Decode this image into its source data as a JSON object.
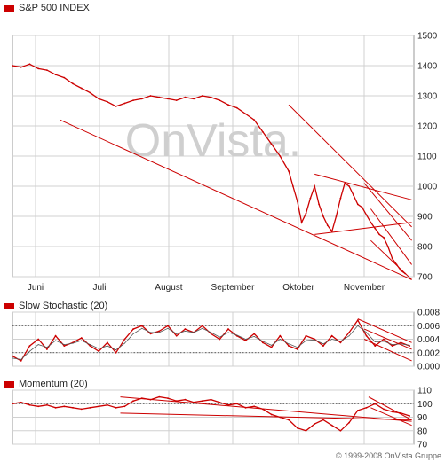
{
  "colors": {
    "accent": "#cc0000",
    "grid": "#d0d0d0",
    "text": "#222222",
    "watermark": "#cfcfcf"
  },
  "watermark": "OnVista.",
  "copyright": "© 1999-2008 OnVista Gruppe",
  "chart_data": [
    {
      "type": "line",
      "title": "S&P 500 INDEX",
      "x_tick_labels": [
        "Juni",
        "Juli",
        "August",
        "September",
        "Oktober",
        "November"
      ],
      "ylim": [
        700,
        1500
      ],
      "y_ticks": [
        700,
        800,
        900,
        1000,
        1100,
        1200,
        1300,
        1400,
        1500
      ],
      "grid": true,
      "series": [
        {
          "x": [
            0,
            4,
            8,
            12,
            16,
            20,
            24,
            28,
            32,
            36,
            40,
            44,
            48,
            52,
            56,
            60,
            64,
            68,
            72,
            76,
            80,
            84,
            88,
            92,
            96,
            100,
            104,
            108,
            112,
            116,
            120,
            124,
            128,
            130,
            132,
            134,
            136,
            138,
            140,
            142,
            144,
            146,
            148,
            150,
            152,
            154,
            156,
            158,
            160,
            162,
            164,
            166,
            168,
            170,
            172,
            174,
            176,
            178,
            180,
            182
          ],
          "values": [
            1400,
            1395,
            1405,
            1390,
            1385,
            1370,
            1360,
            1340,
            1325,
            1310,
            1290,
            1280,
            1265,
            1275,
            1285,
            1290,
            1300,
            1295,
            1290,
            1285,
            1295,
            1290,
            1300,
            1295,
            1285,
            1270,
            1260,
            1240,
            1220,
            1180,
            1140,
            1100,
            1050,
            1000,
            950,
            880,
            910,
            960,
            1000,
            940,
            900,
            870,
            850,
            900,
            960,
            1010,
            1000,
            970,
            940,
            930,
            905,
            880,
            860,
            840,
            830,
            800,
            760,
            740,
            720,
            710
          ]
        }
      ],
      "trend_lines": [
        {
          "x": [
            22,
            185
          ],
          "y": [
            1220,
            690
          ]
        },
        {
          "x": [
            128,
            185
          ],
          "y": [
            1270,
            865
          ]
        },
        {
          "x": [
            140,
            185
          ],
          "y": [
            1040,
            955
          ]
        },
        {
          "x": [
            140,
            185
          ],
          "y": [
            840,
            880
          ]
        },
        {
          "x": [
            163,
            185
          ],
          "y": [
            1010,
            820
          ]
        },
        {
          "x": [
            166,
            185
          ],
          "y": [
            925,
            740
          ]
        },
        {
          "x": [
            166,
            185
          ],
          "y": [
            820,
            690
          ]
        }
      ]
    },
    {
      "type": "line",
      "title": "Slow Stochastic (20)",
      "ylim": [
        0,
        0.008
      ],
      "y_ticks": [
        0.0,
        0.002,
        0.004,
        0.006,
        0.008
      ],
      "y_tick_labels": [
        "0.000",
        "0.002",
        "0.004",
        "0.006",
        "0.008"
      ],
      "grid": true,
      "reference_lines": [
        0.006,
        0.002
      ],
      "series": [
        {
          "x": [
            0,
            4,
            8,
            12,
            16,
            20,
            24,
            28,
            32,
            36,
            40,
            44,
            48,
            52,
            56,
            60,
            64,
            68,
            72,
            76,
            80,
            84,
            88,
            92,
            96,
            100,
            104,
            108,
            112,
            116,
            120,
            124,
            128,
            132,
            136,
            140,
            144,
            148,
            152,
            156,
            160,
            164,
            168,
            172,
            176,
            180,
            184
          ],
          "values": [
            0.0015,
            0.0008,
            0.003,
            0.004,
            0.0025,
            0.0045,
            0.003,
            0.0035,
            0.0042,
            0.003,
            0.0022,
            0.0035,
            0.002,
            0.004,
            0.0055,
            0.006,
            0.0048,
            0.0052,
            0.006,
            0.0045,
            0.0055,
            0.005,
            0.006,
            0.0048,
            0.004,
            0.0055,
            0.0045,
            0.0038,
            0.0048,
            0.0035,
            0.0028,
            0.0045,
            0.003,
            0.0025,
            0.0045,
            0.004,
            0.003,
            0.0045,
            0.0035,
            0.005,
            0.0068,
            0.0045,
            0.003,
            0.004,
            0.003,
            0.0035,
            0.003
          ]
        },
        {
          "x": [
            0,
            4,
            8,
            12,
            16,
            20,
            24,
            28,
            32,
            36,
            40,
            44,
            48,
            52,
            56,
            60,
            64,
            68,
            72,
            76,
            80,
            84,
            88,
            92,
            96,
            100,
            104,
            108,
            112,
            116,
            120,
            124,
            128,
            132,
            136,
            140,
            144,
            148,
            152,
            156,
            160,
            164,
            168,
            172,
            176,
            180,
            184
          ],
          "values": [
            0.0012,
            0.001,
            0.0022,
            0.0032,
            0.0028,
            0.0038,
            0.0032,
            0.0034,
            0.0038,
            0.0032,
            0.0026,
            0.003,
            0.0024,
            0.0034,
            0.0048,
            0.0056,
            0.005,
            0.005,
            0.0056,
            0.0048,
            0.0052,
            0.005,
            0.0056,
            0.005,
            0.0043,
            0.005,
            0.0046,
            0.004,
            0.0044,
            0.0037,
            0.0031,
            0.004,
            0.0033,
            0.0028,
            0.0038,
            0.0039,
            0.0033,
            0.004,
            0.0037,
            0.0045,
            0.006,
            0.005,
            0.0036,
            0.0037,
            0.0032,
            0.0033,
            0.0031
          ]
        }
      ],
      "trend_lines": [
        {
          "x": [
            160,
            185
          ],
          "y": [
            0.007,
            0.0035
          ]
        },
        {
          "x": [
            163,
            185
          ],
          "y": [
            0.0055,
            0.0025
          ]
        },
        {
          "x": [
            163,
            185
          ],
          "y": [
            0.004,
            0.0008
          ]
        }
      ]
    },
    {
      "type": "line",
      "title": "Momentum (20)",
      "ylim": [
        70,
        110
      ],
      "y_ticks": [
        70,
        80,
        90,
        100,
        110
      ],
      "grid": true,
      "reference_lines": [
        100
      ],
      "series": [
        {
          "x": [
            0,
            4,
            8,
            12,
            16,
            20,
            24,
            28,
            32,
            36,
            40,
            44,
            48,
            52,
            56,
            60,
            64,
            68,
            72,
            76,
            80,
            84,
            88,
            92,
            96,
            100,
            104,
            108,
            112,
            116,
            120,
            124,
            128,
            132,
            136,
            140,
            144,
            148,
            152,
            156,
            160,
            164,
            168,
            172,
            176,
            180,
            184
          ],
          "values": [
            100,
            101,
            99,
            98,
            99,
            97,
            98,
            97,
            96,
            97,
            98,
            99,
            97,
            98,
            102,
            104,
            103,
            105,
            104,
            102,
            103,
            101,
            102,
            103,
            101,
            99,
            100,
            97,
            98,
            96,
            92,
            90,
            88,
            82,
            80,
            85,
            88,
            84,
            80,
            86,
            95,
            97,
            100,
            96,
            94,
            93,
            91
          ]
        }
      ],
      "trend_lines": [
        {
          "x": [
            50,
            185
          ],
          "y": [
            105,
            87
          ]
        },
        {
          "x": [
            50,
            185
          ],
          "y": [
            93,
            88
          ]
        },
        {
          "x": [
            165,
            185
          ],
          "y": [
            105,
            88
          ]
        },
        {
          "x": [
            166,
            185
          ],
          "y": [
            97,
            84
          ]
        }
      ]
    }
  ]
}
